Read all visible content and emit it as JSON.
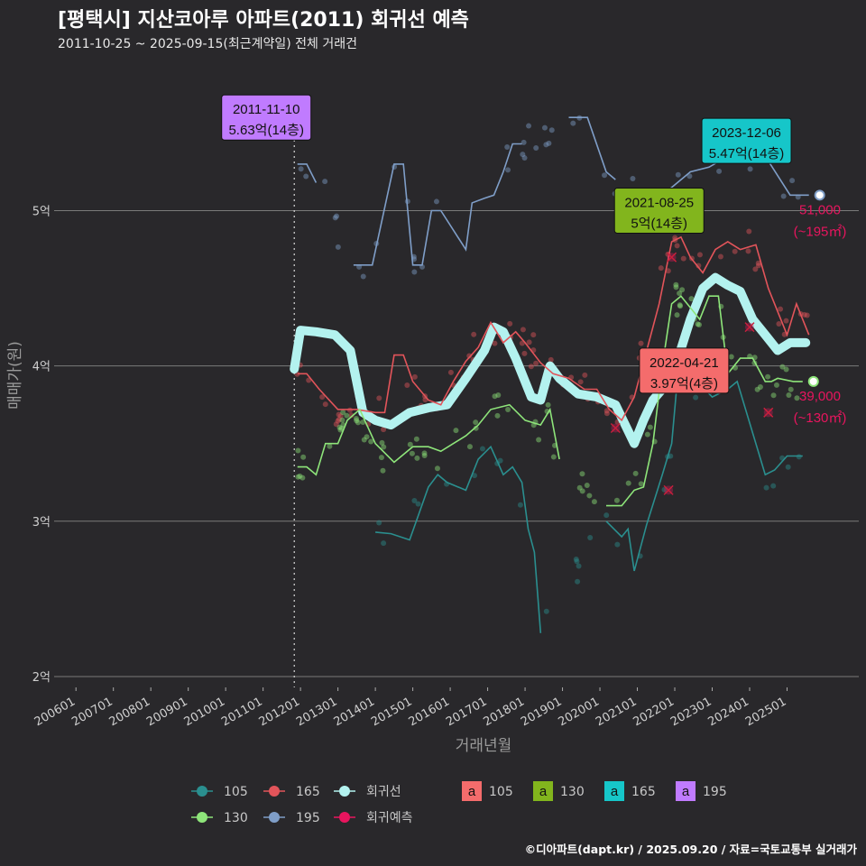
{
  "header": {
    "title": "[평택시] 지산코아루 아파트(2011) 회귀선 예측",
    "subtitle": "2011-10-25 ~ 2025-09-15(최근계약일) 전체 거래건"
  },
  "source": "©디아파트(dapt.kr) / 2025.09.20 / 자료=국토교통부 실거래가",
  "chart_data": {
    "type": "line",
    "xlabel": "거래년월",
    "ylabel": "매매가(원)",
    "x_ticks": [
      "200601",
      "200701",
      "200801",
      "200901",
      "201001",
      "201101",
      "201201",
      "201301",
      "201401",
      "201501",
      "201601",
      "201701",
      "201801",
      "201901",
      "202001",
      "202101",
      "202201",
      "202301",
      "202401",
      "202501"
    ],
    "xlim": [
      "2005-06",
      "2026-12"
    ],
    "y_ticks": [
      {
        "value": 2.0,
        "label": "2억"
      },
      {
        "value": 3.0,
        "label": "3억"
      },
      {
        "value": 4.0,
        "label": "4억"
      },
      {
        "value": 5.0,
        "label": "5억"
      }
    ],
    "ylim": [
      1.93,
      5.95
    ],
    "unit": "억",
    "grid": true,
    "colors": {
      "105": "#2a8f8f",
      "130": "#8ee57a",
      "165": "#e2545a",
      "195": "#7f9ec8",
      "regression": "#b3f2ef",
      "forecast": "#e8155e"
    },
    "series": [
      {
        "name": "195",
        "color": "#7f9ec8",
        "points": [
          [
            "2011-12",
            5.3
          ],
          [
            "2012-03",
            5.3
          ],
          [
            "2012-06",
            5.18
          ],
          [
            "2013-06",
            4.65
          ],
          [
            "2013-12",
            4.65
          ],
          [
            "2014-07",
            5.3
          ],
          [
            "2014-10",
            5.3
          ],
          [
            "2015-01",
            4.65
          ],
          [
            "2015-04",
            4.65
          ],
          [
            "2015-07",
            5.0
          ],
          [
            "2015-10",
            5.0
          ],
          [
            "2016-06",
            4.75
          ],
          [
            "2016-08",
            5.05
          ],
          [
            "2016-12",
            5.08
          ],
          [
            "2017-03",
            5.1
          ],
          [
            "2017-06",
            5.25
          ],
          [
            "2017-09",
            5.43
          ],
          [
            "2017-12",
            5.43
          ],
          [
            "2019-03",
            5.6
          ],
          [
            "2019-09",
            5.6
          ],
          [
            "2020-03",
            5.25
          ],
          [
            "2020-06",
            5.2
          ],
          [
            "2021-06",
            5.05
          ],
          [
            "2021-12",
            5.15
          ],
          [
            "2022-06",
            5.25
          ],
          [
            "2022-12",
            5.28
          ],
          [
            "2023-06",
            5.35
          ],
          [
            "2023-12",
            5.4
          ],
          [
            "2024-03",
            5.32
          ],
          [
            "2024-07",
            5.32
          ],
          [
            "2025-02",
            5.1
          ],
          [
            "2025-08",
            5.1
          ]
        ]
      },
      {
        "name": "165",
        "color": "#e2545a",
        "points": [
          [
            "2011-12",
            3.95
          ],
          [
            "2012-03",
            3.95
          ],
          [
            "2012-07",
            3.85
          ],
          [
            "2013-01",
            3.72
          ],
          [
            "2013-07",
            3.72
          ],
          [
            "2014-01",
            3.7
          ],
          [
            "2014-04",
            3.7
          ],
          [
            "2014-07",
            4.07
          ],
          [
            "2014-10",
            4.07
          ],
          [
            "2015-01",
            3.9
          ],
          [
            "2015-06",
            3.78
          ],
          [
            "2015-10",
            3.75
          ],
          [
            "2016-02",
            3.9
          ],
          [
            "2016-06",
            4.03
          ],
          [
            "2016-10",
            4.12
          ],
          [
            "2017-02",
            4.28
          ],
          [
            "2017-06",
            4.15
          ],
          [
            "2017-10",
            4.22
          ],
          [
            "2018-01",
            4.15
          ],
          [
            "2018-06",
            4.02
          ],
          [
            "2018-10",
            3.95
          ],
          [
            "2019-03",
            3.92
          ],
          [
            "2019-08",
            3.85
          ],
          [
            "2019-12",
            3.85
          ],
          [
            "2020-04",
            3.72
          ],
          [
            "2020-08",
            3.65
          ],
          [
            "2020-12",
            3.8
          ],
          [
            "2021-04",
            4.1
          ],
          [
            "2021-08",
            4.4
          ],
          [
            "2021-12",
            4.8
          ],
          [
            "2022-03",
            4.83
          ],
          [
            "2022-06",
            4.7
          ],
          [
            "2022-10",
            4.6
          ],
          [
            "2023-02",
            4.75
          ],
          [
            "2023-06",
            4.8
          ],
          [
            "2023-10",
            4.75
          ],
          [
            "2024-03",
            4.78
          ],
          [
            "2024-07",
            4.5
          ],
          [
            "2024-10",
            4.35
          ],
          [
            "2025-01",
            4.2
          ],
          [
            "2025-04",
            4.4
          ],
          [
            "2025-08",
            4.2
          ]
        ]
      },
      {
        "name": "130",
        "color": "#8ee57a",
        "points": [
          [
            "2011-12",
            3.35
          ],
          [
            "2012-03",
            3.35
          ],
          [
            "2012-06",
            3.3
          ],
          [
            "2012-09",
            3.5
          ],
          [
            "2013-01",
            3.5
          ],
          [
            "2013-04",
            3.65
          ],
          [
            "2013-08",
            3.72
          ],
          [
            "2014-01",
            3.5
          ],
          [
            "2014-07",
            3.38
          ],
          [
            "2015-01",
            3.48
          ],
          [
            "2015-06",
            3.48
          ],
          [
            "2015-10",
            3.45
          ],
          [
            "2016-02",
            3.5
          ],
          [
            "2016-06",
            3.55
          ],
          [
            "2016-10",
            3.62
          ],
          [
            "2017-02",
            3.72
          ],
          [
            "2017-08",
            3.75
          ],
          [
            "2018-01",
            3.65
          ],
          [
            "2018-06",
            3.62
          ],
          [
            "2018-09",
            3.72
          ],
          [
            "2018-12",
            3.4
          ],
          [
            "2020-03",
            3.1
          ],
          [
            "2020-08",
            3.1
          ],
          [
            "2020-12",
            3.2
          ],
          [
            "2021-03",
            3.22
          ],
          [
            "2021-06",
            3.5
          ],
          [
            "2021-09",
            4.0
          ],
          [
            "2021-12",
            4.4
          ],
          [
            "2022-03",
            4.45
          ],
          [
            "2022-09",
            4.3
          ],
          [
            "2022-12",
            4.45
          ],
          [
            "2023-03",
            4.45
          ],
          [
            "2023-06",
            3.95
          ],
          [
            "2023-10",
            4.05
          ],
          [
            "2024-02",
            4.05
          ],
          [
            "2024-06",
            3.9
          ],
          [
            "2024-08",
            3.9
          ],
          [
            "2024-10",
            3.92
          ],
          [
            "2025-03",
            3.9
          ],
          [
            "2025-06",
            3.9
          ]
        ]
      },
      {
        "name": "105",
        "color": "#2a8f8f",
        "points": [
          [
            "2014-01",
            2.93
          ],
          [
            "2014-06",
            2.92
          ],
          [
            "2014-12",
            2.88
          ],
          [
            "2015-06",
            3.22
          ],
          [
            "2015-09",
            3.3
          ],
          [
            "2015-12",
            3.25
          ],
          [
            "2016-06",
            3.2
          ],
          [
            "2016-10",
            3.4
          ],
          [
            "2017-02",
            3.48
          ],
          [
            "2017-06",
            3.3
          ],
          [
            "2017-09",
            3.35
          ],
          [
            "2017-12",
            3.25
          ],
          [
            "2018-02",
            2.95
          ],
          [
            "2018-04",
            2.8
          ],
          [
            "2018-06",
            2.28
          ],
          [
            "2020-03",
            3.0
          ],
          [
            "2020-08",
            2.9
          ],
          [
            "2020-10",
            2.95
          ],
          [
            "2020-12",
            2.68
          ],
          [
            "2021-04",
            2.98
          ],
          [
            "2021-09",
            3.3
          ],
          [
            "2021-12",
            3.5
          ],
          [
            "2022-02",
            3.95
          ],
          [
            "2022-06",
            3.95
          ],
          [
            "2023-01",
            3.8
          ],
          [
            "2023-06",
            3.85
          ],
          [
            "2023-09",
            3.9
          ],
          [
            "2024-06",
            3.3
          ],
          [
            "2024-09",
            3.33
          ],
          [
            "2025-01",
            3.42
          ],
          [
            "2025-06",
            3.42
          ]
        ]
      },
      {
        "name": "회귀선",
        "color": "#b3f2ef",
        "points": [
          [
            "2011-11",
            3.98
          ],
          [
            "2012-01",
            4.23
          ],
          [
            "2012-06",
            4.22
          ],
          [
            "2012-12",
            4.2
          ],
          [
            "2013-05",
            4.1
          ],
          [
            "2013-09",
            3.7
          ],
          [
            "2014-01",
            3.65
          ],
          [
            "2014-06",
            3.62
          ],
          [
            "2014-12",
            3.7
          ],
          [
            "2015-06",
            3.73
          ],
          [
            "2015-12",
            3.75
          ],
          [
            "2016-06",
            3.92
          ],
          [
            "2016-12",
            4.1
          ],
          [
            "2017-03",
            4.25
          ],
          [
            "2017-06",
            4.22
          ],
          [
            "2017-10",
            4.05
          ],
          [
            "2018-03",
            3.8
          ],
          [
            "2018-06",
            3.78
          ],
          [
            "2018-09",
            4.0
          ],
          [
            "2018-12",
            3.92
          ],
          [
            "2019-06",
            3.82
          ],
          [
            "2019-12",
            3.8
          ],
          [
            "2020-06",
            3.75
          ],
          [
            "2020-12",
            3.5
          ],
          [
            "2021-03",
            3.65
          ],
          [
            "2021-06",
            3.78
          ],
          [
            "2021-12",
            3.92
          ],
          [
            "2022-06",
            4.3
          ],
          [
            "2022-10",
            4.5
          ],
          [
            "2023-02",
            4.57
          ],
          [
            "2023-06",
            4.52
          ],
          [
            "2023-10",
            4.48
          ],
          [
            "2024-02",
            4.3
          ],
          [
            "2024-06",
            4.2
          ],
          [
            "2024-10",
            4.1
          ],
          [
            "2025-02",
            4.15
          ],
          [
            "2025-07",
            4.15
          ]
        ]
      }
    ],
    "annotations": [
      {
        "date": "2011-11-10",
        "price": "5.63억(14층)",
        "x": "2011-11",
        "y": 5.6,
        "box_color": "#c07bff",
        "vline": true
      },
      {
        "date": "2023-12-06",
        "price": "5.47억(14층)",
        "x": "2023-12",
        "y": 5.45,
        "box_color": "#16c6c9"
      },
      {
        "date": "2021-08-25",
        "price": "5억(14층)",
        "x": "2021-08",
        "y": 5.0,
        "box_color": "#82b51d"
      },
      {
        "date": "2022-04-21",
        "price": "3.97억(4층)",
        "x": "2022-04",
        "y": 3.97,
        "box_color": "#f46c6c"
      }
    ],
    "forecast_labels": [
      {
        "value": "51,000",
        "area": "(~195㎡)",
        "y": 5.1
      },
      {
        "value": "39,000",
        "area": "(~130㎡)",
        "y": 3.9
      }
    ],
    "forecast_marks": [
      {
        "x": "2021-11",
        "y": 3.2
      },
      {
        "x": "2021-12",
        "y": 4.7
      },
      {
        "x": "2023-02",
        "y": 3.85
      },
      {
        "x": "2024-01",
        "y": 4.25
      },
      {
        "x": "2024-07",
        "y": 3.7
      },
      {
        "x": "2020-06",
        "y": 3.6
      }
    ],
    "legend": {
      "placement": "bottom",
      "line_items": [
        "105",
        "165",
        "회귀선",
        "130",
        "195",
        "회귀예측"
      ],
      "box_items": [
        {
          "label": "105",
          "color": "#f46c6c"
        },
        {
          "label": "130",
          "color": "#82b51d"
        },
        {
          "label": "165",
          "color": "#16c6c9"
        },
        {
          "label": "195",
          "color": "#c07bff"
        }
      ],
      "box_glyph": "a"
    }
  }
}
